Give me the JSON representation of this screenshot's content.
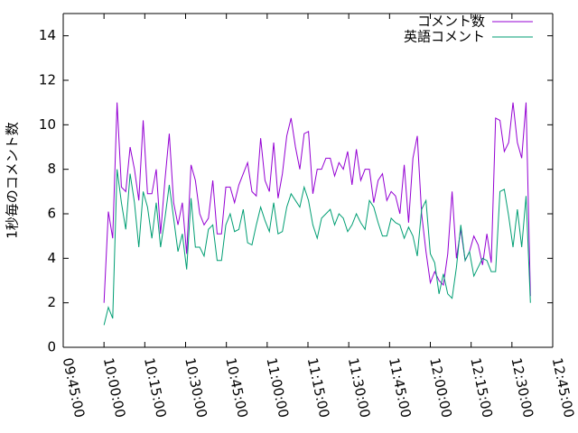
{
  "chart_data": {
    "type": "line",
    "ylabel": "1秒毎のコメント数",
    "xlim": [
      "09:45:00",
      "12:45:00"
    ],
    "xticks": [
      "09:45:00",
      "10:00:00",
      "10:15:00",
      "10:30:00",
      "10:45:00",
      "11:00:00",
      "11:15:00",
      "11:30:00",
      "11:45:00",
      "12:00:00",
      "12:15:00",
      "12:30:00",
      "12:45:00"
    ],
    "ylim": [
      0,
      15
    ],
    "yticks": [
      0,
      2,
      4,
      6,
      8,
      10,
      12,
      14
    ],
    "legend": "top-right",
    "x": [
      "10:00:00",
      "10:01:36",
      "10:03:12",
      "10:04:48",
      "10:06:24",
      "10:08:00",
      "10:09:36",
      "10:11:12",
      "10:12:48",
      "10:14:24",
      "10:16:00",
      "10:17:36",
      "10:19:12",
      "10:20:48",
      "10:22:24",
      "10:24:00",
      "10:25:36",
      "10:27:12",
      "10:28:48",
      "10:30:24",
      "10:32:00",
      "10:33:36",
      "10:35:12",
      "10:36:48",
      "10:38:24",
      "10:40:00",
      "10:41:36",
      "10:43:12",
      "10:44:48",
      "10:46:24",
      "10:48:00",
      "10:49:36",
      "10:51:12",
      "10:52:48",
      "10:54:24",
      "10:56:00",
      "10:57:36",
      "10:59:12",
      "11:00:48",
      "11:02:24",
      "11:04:00",
      "11:05:36",
      "11:07:12",
      "11:08:48",
      "11:10:24",
      "11:12:00",
      "11:13:36",
      "11:15:12",
      "11:16:48",
      "11:18:24",
      "11:20:00",
      "11:21:36",
      "11:23:12",
      "11:24:48",
      "11:26:24",
      "11:28:00",
      "11:29:36",
      "11:31:12",
      "11:32:48",
      "11:34:24",
      "11:36:00",
      "11:37:36",
      "11:39:12",
      "11:40:48",
      "11:42:24",
      "11:44:00",
      "11:45:36",
      "11:47:12",
      "11:48:48",
      "11:50:24",
      "11:52:00",
      "11:53:36",
      "11:55:12",
      "11:56:48",
      "11:58:24",
      "12:00:00",
      "12:01:36",
      "12:03:12",
      "12:04:48",
      "12:06:24",
      "12:08:00",
      "12:09:36",
      "12:11:12",
      "12:12:48",
      "12:14:24",
      "12:16:00",
      "12:17:36",
      "12:19:12",
      "12:20:48",
      "12:22:24",
      "12:24:00",
      "12:25:36",
      "12:27:12",
      "12:28:48",
      "12:30:24",
      "12:32:00",
      "12:33:36",
      "12:35:12",
      "12:36:48"
    ],
    "series": [
      {
        "name": "コメント数",
        "color": "#9400d3",
        "values": [
          2,
          6.1,
          4.9,
          11,
          7.2,
          7,
          9,
          8,
          6.6,
          10.2,
          6.9,
          6.9,
          8,
          5.1,
          7.5,
          9.6,
          6.5,
          5.5,
          6.5,
          4.2,
          8.2,
          7.5,
          6,
          5.5,
          5.8,
          7.5,
          5.1,
          5.1,
          7.2,
          7.2,
          6.5,
          7.3,
          7.8,
          8.3,
          7,
          6.8,
          9.4,
          7.5,
          7,
          9.2,
          6.7,
          7.8,
          9.5,
          10.3,
          9,
          8,
          9.6,
          9.7,
          6.9,
          8,
          8,
          8.5,
          8.5,
          7.7,
          8.3,
          8,
          8.8,
          7.3,
          8.9,
          7.5,
          8,
          8,
          6.5,
          7.5,
          7.8,
          6.6,
          7,
          6.8,
          6,
          8.2,
          5.6,
          8.5,
          9.5,
          6,
          4.3,
          2.9,
          3.4,
          3,
          2.8,
          4.2,
          7,
          4,
          5.3,
          3.9,
          4.3,
          5,
          4.6,
          3.7,
          5.1,
          3.8,
          10.3,
          10.2,
          8.8,
          9.2,
          11,
          9.2,
          8.5,
          11,
          2.3
        ]
      },
      {
        "name": "英語コメント",
        "color": "#009e73",
        "values": [
          1,
          1.8,
          1.3,
          8,
          6.5,
          5.3,
          7.8,
          6.5,
          4.5,
          7,
          6.3,
          4.9,
          6.5,
          4.5,
          5.8,
          7.3,
          5.8,
          4.3,
          5.1,
          3.5,
          6.7,
          4.5,
          4.5,
          4.1,
          5.3,
          5.5,
          3.9,
          3.9,
          5.5,
          6,
          5.2,
          5.3,
          6.2,
          4.7,
          4.6,
          5.5,
          6.3,
          5.7,
          5.2,
          6.5,
          5.1,
          5.2,
          6.3,
          6.9,
          6.6,
          6.3,
          7.2,
          6.6,
          5.5,
          4.9,
          5.8,
          6,
          6.2,
          5.5,
          6,
          5.8,
          5.2,
          5.5,
          6,
          5.6,
          5.3,
          6.6,
          6.3,
          5.6,
          5,
          5,
          5.8,
          5.6,
          5.5,
          4.9,
          5.4,
          5,
          4.1,
          6.2,
          6.6,
          4.2,
          3.8,
          2.4,
          3.3,
          2.4,
          2.2,
          3.6,
          5.5,
          3.9,
          4.3,
          3.2,
          3.6,
          4,
          3.9,
          3.4,
          3.4,
          7,
          7.1,
          5.9,
          4.5,
          6.2,
          4.5,
          6.8,
          2
        ]
      }
    ]
  }
}
